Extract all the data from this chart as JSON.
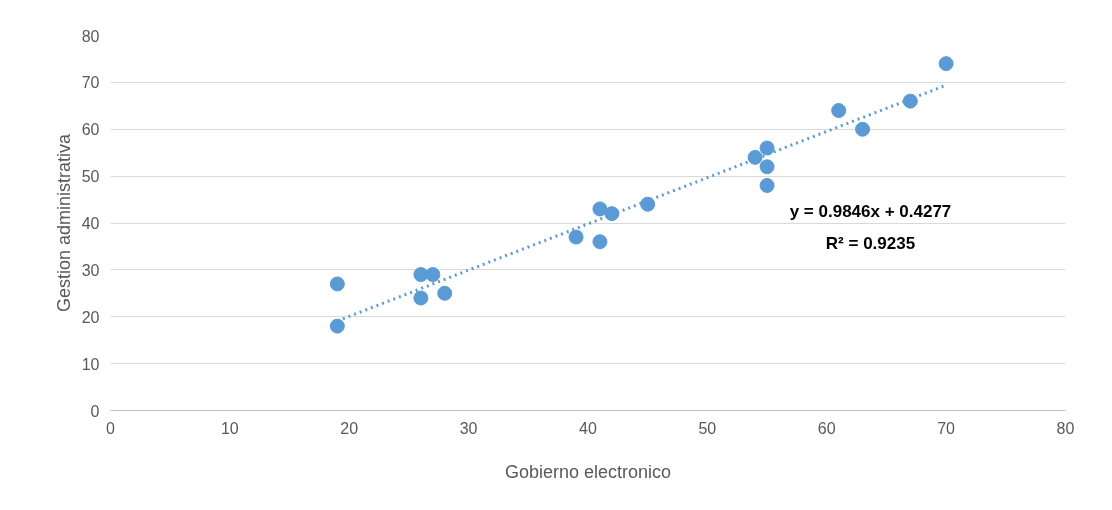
{
  "chart_data": {
    "type": "scatter",
    "xlabel": "Gobierno electronico",
    "ylabel": "Gestion administrativa",
    "xlim": [
      0,
      80
    ],
    "ylim": [
      0,
      80
    ],
    "xticks": [
      0,
      10,
      20,
      30,
      40,
      50,
      60,
      70,
      80
    ],
    "yticks": [
      0,
      10,
      20,
      30,
      40,
      50,
      60,
      70,
      80
    ],
    "grid": "y",
    "series": [
      {
        "marker": "circle",
        "color": "#5b9bd5",
        "x": [
          19,
          19,
          26,
          26,
          27,
          28,
          39,
          41,
          41,
          42,
          45,
          54,
          55,
          55,
          55,
          61,
          63,
          67,
          70
        ],
        "values": [
          27,
          18,
          29,
          24,
          29,
          25,
          37,
          43,
          36,
          42,
          44,
          54,
          56,
          52,
          48,
          64,
          60,
          66,
          74
        ]
      },
      {
        "type": "line",
        "color": "#5b9bd5",
        "line_style": "dotted",
        "marker": "none",
        "x": [
          19,
          70
        ],
        "values": [
          19.1,
          69.4
        ]
      }
    ],
    "annotations": [
      "y = 0.9846x + 0.4277",
      "R² = 0.9235"
    ]
  }
}
